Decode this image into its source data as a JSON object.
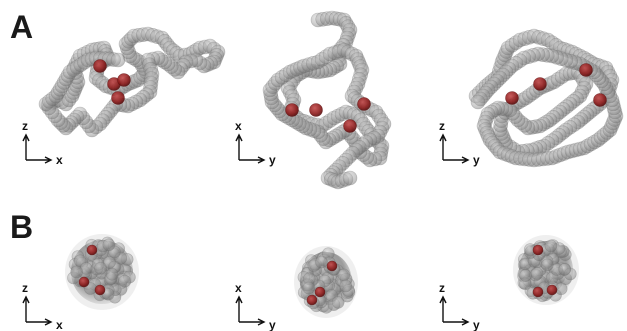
{
  "panels": [
    {
      "id": "A",
      "letter": "A",
      "views": [
        {
          "vertical": "z",
          "horizontal": "x"
        },
        {
          "vertical": "x",
          "horizontal": "y"
        },
        {
          "vertical": "z",
          "horizontal": "y"
        }
      ]
    },
    {
      "id": "B",
      "letter": "B",
      "views": [
        {
          "vertical": "z",
          "horizontal": "x"
        },
        {
          "vertical": "x",
          "horizontal": "y"
        },
        {
          "vertical": "z",
          "horizontal": "y"
        }
      ]
    }
  ],
  "colors": {
    "bead_fill": "#8a8a8a",
    "bead_edge": "#5a5a5a",
    "highlight_bead": "#8b1a1a",
    "background": "#ffffff",
    "text": "#111111"
  }
}
